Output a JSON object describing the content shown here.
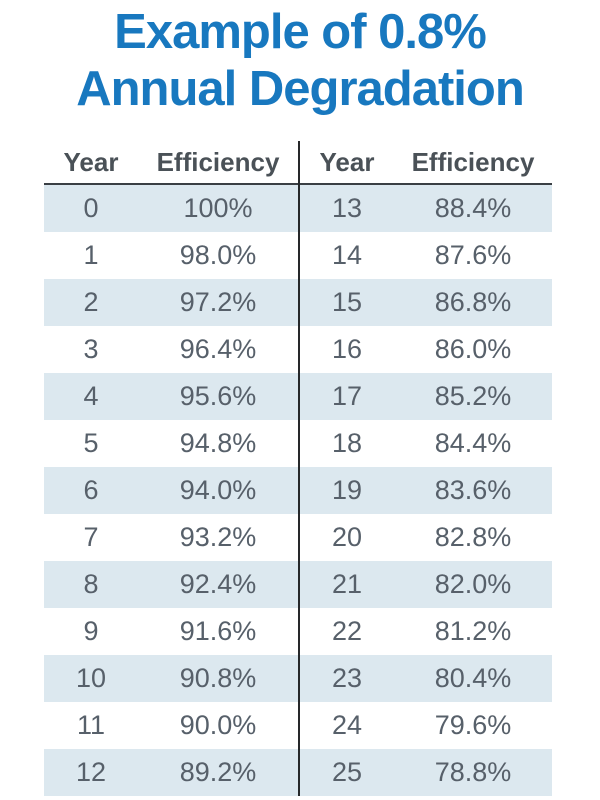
{
  "title": {
    "line1": "Example of 0.8%",
    "line2": "Annual Degradation"
  },
  "table": {
    "left": {
      "headers": [
        "Year",
        "Efficiency"
      ],
      "rows": [
        [
          "0",
          "100%"
        ],
        [
          "1",
          "98.0%"
        ],
        [
          "2",
          "97.2%"
        ],
        [
          "3",
          "96.4%"
        ],
        [
          "4",
          "95.6%"
        ],
        [
          "5",
          "94.8%"
        ],
        [
          "6",
          "94.0%"
        ],
        [
          "7",
          "93.2%"
        ],
        [
          "8",
          "92.4%"
        ],
        [
          "9",
          "91.6%"
        ],
        [
          "10",
          "90.8%"
        ],
        [
          "11",
          "90.0%"
        ],
        [
          "12",
          "89.2%"
        ]
      ]
    },
    "right": {
      "headers": [
        "Year",
        "Efficiency"
      ],
      "rows": [
        [
          "13",
          "88.4%"
        ],
        [
          "14",
          "87.6%"
        ],
        [
          "15",
          "86.8%"
        ],
        [
          "16",
          "86.0%"
        ],
        [
          "17",
          "85.2%"
        ],
        [
          "18",
          "84.4%"
        ],
        [
          "19",
          "83.6%"
        ],
        [
          "20",
          "82.8%"
        ],
        [
          "21",
          "82.0%"
        ],
        [
          "22",
          "81.2%"
        ],
        [
          "23",
          "80.4%"
        ],
        [
          "24",
          "79.6%"
        ],
        [
          "25",
          "78.8%"
        ]
      ]
    }
  },
  "colors": {
    "title_blue": "#1878bf",
    "row_stripe": "#dce8ef",
    "body_text": "#57606a",
    "header_text": "#4a5157",
    "divider": "#26282a"
  },
  "chart_data": {
    "type": "table",
    "title": "Example of 0.8% Annual Degradation",
    "columns": [
      "Year",
      "Efficiency"
    ],
    "rows": [
      [
        0,
        "100%"
      ],
      [
        1,
        "98.0%"
      ],
      [
        2,
        "97.2%"
      ],
      [
        3,
        "96.4%"
      ],
      [
        4,
        "95.6%"
      ],
      [
        5,
        "94.8%"
      ],
      [
        6,
        "94.0%"
      ],
      [
        7,
        "93.2%"
      ],
      [
        8,
        "92.4%"
      ],
      [
        9,
        "91.6%"
      ],
      [
        10,
        "90.8%"
      ],
      [
        11,
        "90.0%"
      ],
      [
        12,
        "89.2%"
      ],
      [
        13,
        "88.4%"
      ],
      [
        14,
        "87.6%"
      ],
      [
        15,
        "86.8%"
      ],
      [
        16,
        "86.0%"
      ],
      [
        17,
        "85.2%"
      ],
      [
        18,
        "84.4%"
      ],
      [
        19,
        "83.6%"
      ],
      [
        20,
        "82.8%"
      ],
      [
        21,
        "82.0%"
      ],
      [
        22,
        "81.2%"
      ],
      [
        23,
        "80.4%"
      ],
      [
        24,
        "79.6%"
      ],
      [
        25,
        "78.8%"
      ]
    ],
    "annotations": {
      "annual_degradation_rate": "0.8%",
      "stripe_pattern": "even rows shaded"
    }
  }
}
